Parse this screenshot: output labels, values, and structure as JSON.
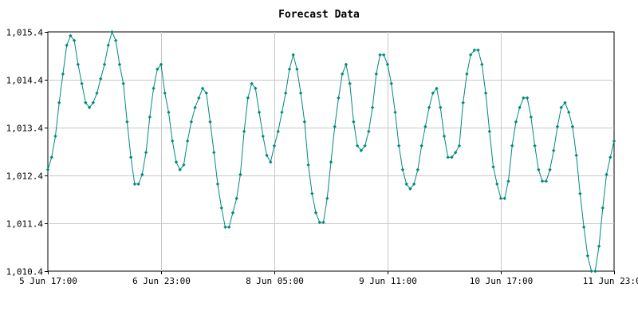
{
  "chart_data": {
    "type": "line",
    "title": "Forecast Data",
    "xlabel": "",
    "ylabel": "",
    "x_tick_labels": [
      "5 Jun 17:00",
      "6 Jun 23:00",
      "8 Jun 05:00",
      "9 Jun 11:00",
      "10 Jun 17:00",
      "11 Jun 23:00"
    ],
    "y_tick_labels": [
      "1,010.4",
      "1,011.4",
      "1,012.4",
      "1,013.4",
      "1,014.4",
      "1,015.4"
    ],
    "ylim": [
      1010.4,
      1015.4
    ],
    "xlim_hours_from_first_label": [
      0,
      150
    ],
    "grid": true,
    "legend": "none",
    "colors": {
      "series": "#00897b",
      "grid": "#c8c8c8",
      "frame": "#000000"
    },
    "series": [
      {
        "x_hours": [
          0,
          1,
          2,
          3,
          4,
          5,
          6,
          7,
          8,
          9,
          10,
          11,
          12,
          13,
          14,
          15,
          16,
          17,
          18,
          19,
          20,
          21,
          22,
          23,
          24,
          25,
          26,
          27,
          28,
          29,
          30,
          31,
          32,
          33,
          34,
          35,
          36,
          37,
          38,
          39,
          40,
          41,
          42,
          43,
          44,
          45,
          46,
          47,
          48,
          49,
          50,
          51,
          52,
          53,
          54,
          55,
          56,
          57,
          58,
          59,
          60,
          61,
          62,
          63,
          64,
          65,
          66,
          67,
          68,
          69,
          70,
          71,
          72,
          73,
          74,
          75,
          76,
          77,
          78,
          79,
          80,
          81,
          82,
          83,
          84,
          85,
          86,
          87,
          88,
          89,
          90,
          91,
          92,
          93,
          94,
          95,
          96,
          97,
          98,
          99,
          100,
          101,
          102,
          103,
          104,
          105,
          106,
          107,
          108,
          109,
          110,
          111,
          112,
          113,
          114,
          115,
          116,
          117,
          118,
          119,
          120,
          121,
          122,
          123,
          124,
          125,
          126,
          127,
          128,
          129,
          130,
          131,
          132,
          133,
          134,
          135,
          136,
          137,
          138,
          139,
          140,
          141,
          142,
          143,
          144,
          145,
          146,
          147,
          148,
          149,
          150
        ],
        "values": [
          1012.52,
          1012.78,
          1013.22,
          1013.92,
          1014.52,
          1015.12,
          1015.32,
          1015.22,
          1014.72,
          1014.32,
          1013.92,
          1013.82,
          1013.92,
          1014.12,
          1014.42,
          1014.72,
          1015.12,
          1015.4,
          1015.22,
          1014.72,
          1014.32,
          1013.52,
          1012.78,
          1012.22,
          1012.22,
          1012.42,
          1012.88,
          1013.62,
          1014.22,
          1014.62,
          1014.72,
          1014.12,
          1013.72,
          1013.12,
          1012.68,
          1012.52,
          1012.62,
          1013.12,
          1013.52,
          1013.82,
          1014.02,
          1014.22,
          1014.12,
          1013.52,
          1012.88,
          1012.22,
          1011.72,
          1011.32,
          1011.32,
          1011.62,
          1011.92,
          1012.42,
          1013.32,
          1014.02,
          1014.32,
          1014.22,
          1013.72,
          1013.22,
          1012.82,
          1012.68,
          1013.02,
          1013.32,
          1013.72,
          1014.12,
          1014.62,
          1014.92,
          1014.62,
          1014.12,
          1013.52,
          1012.62,
          1012.02,
          1011.62,
          1011.42,
          1011.42,
          1011.92,
          1012.68,
          1013.42,
          1014.02,
          1014.52,
          1014.72,
          1014.32,
          1013.52,
          1013.02,
          1012.92,
          1013.02,
          1013.32,
          1013.82,
          1014.52,
          1014.92,
          1014.92,
          1014.72,
          1014.32,
          1013.72,
          1013.02,
          1012.52,
          1012.22,
          1012.12,
          1012.22,
          1012.52,
          1013.02,
          1013.42,
          1013.82,
          1014.12,
          1014.22,
          1013.82,
          1013.22,
          1012.78,
          1012.78,
          1012.88,
          1013.02,
          1013.92,
          1014.52,
          1014.92,
          1015.02,
          1015.02,
          1014.72,
          1014.12,
          1013.32,
          1012.58,
          1012.22,
          1011.92,
          1011.92,
          1012.28,
          1013.02,
          1013.52,
          1013.82,
          1014.02,
          1014.02,
          1013.62,
          1013.02,
          1012.52,
          1012.28,
          1012.28,
          1012.52,
          1012.92,
          1013.42,
          1013.82,
          1013.92,
          1013.72,
          1013.42,
          1012.82,
          1012.02,
          1011.32,
          1010.72,
          1010.4,
          1010.4,
          1010.92,
          1011.72,
          1012.42,
          1012.78,
          1013.12
        ]
      }
    ]
  }
}
